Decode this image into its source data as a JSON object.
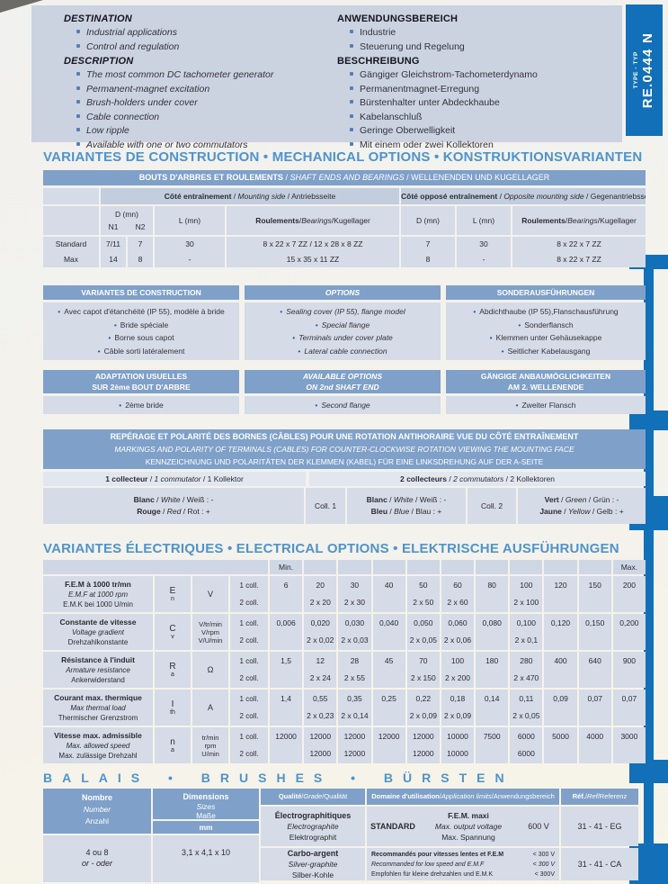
{
  "type_tab": {
    "label": "TYPE - TYP",
    "value": "RE.0444 N"
  },
  "intro": {
    "en": {
      "h1": "DESTINATION",
      "items1": [
        "Industrial applications",
        "Control and regulation"
      ],
      "h2": "DESCRIPTION",
      "items2": [
        "The most common DC tachometer generator",
        "Permanent-magnet excitation",
        "Brush-holders under cover",
        "Cable connection",
        "Low ripple",
        "Available with one or two commutators"
      ]
    },
    "de": {
      "h1": "ANWENDUNGSBEREICH",
      "items1": [
        "Industrie",
        "Steuerung und Regelung"
      ],
      "h2": "BESCHREIBUNG",
      "items2": [
        "Gängiger Gleichstrom-Tachometerdynamo",
        "Permanentmagnet-Erregung",
        "Bürstenhalter unter Abdeckhaube",
        "Kabelanschluß",
        "Geringe Oberwelligkeit",
        "Mit einem oder zwei Kollektoren"
      ]
    }
  },
  "headings": {
    "mechanical": "VARIANTES DE CONSTRUCTION • MECHANICAL OPTIONS • KONSTRUKTIONSVARIANTEN",
    "electrical": "VARIANTES ÉLECTRIQUES • ELECTRICAL OPTIONS • ELEKTRISCHE AUSFÜHRUNGEN",
    "brushes": "BALAIS • BRUSHES • BÜRSTEN"
  },
  "bearings": {
    "band": {
      "fr": "BOUTS D'ARBRES ET ROULEMENTS",
      "en": "SHAFT ENDS AND BEARINGS",
      "de": "WELLENENDEN UND KUGELLAGER"
    },
    "group1": {
      "fr": "Côté entraînement",
      "en": "Mounting side",
      "de": "Antriebsseite"
    },
    "group2": {
      "fr": "Côté opposé entraînement",
      "en": "Opposite mounting side",
      "de": "Gegenantriebsseite"
    },
    "col_d": "D (mn)",
    "col_l": "L (mn)",
    "col_brg": {
      "fr": "Roulements",
      "en": "Bearings",
      "de": "Kugellager"
    },
    "sub_n1": "N1",
    "sub_n2": "N2",
    "rows": [
      {
        "label": "Standard",
        "n1": "7/11",
        "n2": "7",
        "l": "30",
        "brg": "8 x 22 x 7 ZZ / 12 x 28 x 8 ZZ",
        "d2": "7",
        "l2": "30",
        "brg2": "8 x 22 x 7 ZZ"
      },
      {
        "label": "Max",
        "n1": "14",
        "n2": "8",
        "l": "-",
        "brg": "15 x 35 x 11 ZZ",
        "d2": "8",
        "l2": "-",
        "brg2": "8 x 22 x 7 ZZ"
      }
    ]
  },
  "options": {
    "columns": [
      {
        "title": "VARIANTES DE CONSTRUCTION",
        "items": [
          "Avec capot d'étanchéité (IP 55), modèle à bride",
          "Bride spéciale",
          "Borne sous capot",
          "Câble sorti latéralement"
        ]
      },
      {
        "title": "OPTIONS",
        "items": [
          "Sealing cover (IP 55), flange model",
          "Special flange",
          "Terminals under cover plate",
          "Lateral cable connection"
        ]
      },
      {
        "title": "SONDERAUSFÜHRUNGEN",
        "items": [
          "Abdichthaube (IP 55),Flanschausführung",
          "Sonderflansch",
          "Klemmen unter Gehäusekappe",
          "Seitlicher Kabelausgang"
        ]
      }
    ]
  },
  "adaptation": {
    "columns": [
      {
        "title1": "ADAPTATION USUELLES",
        "title2": "SUR 2ème BOUT D'ARBRE",
        "items": [
          "2ème bride"
        ]
      },
      {
        "title1": "AVAILABLE OPTIONS",
        "title2": "ON 2nd SHAFT END",
        "items": [
          "Second flange"
        ]
      },
      {
        "title1": "GÄNGIGE ANBAUMÖGLICHKEITEN",
        "title2": "AM 2. WELLENENDE",
        "items": [
          "Zweiter Flansch"
        ]
      }
    ]
  },
  "polarity": {
    "band_fr": "REPÉRAGE ET POLARITÉ DES BORNES (CÂBLES) POUR UNE ROTATION ANTIHORAIRE VUE DU CÔTÉ ENTRAÎNEMENT",
    "band_en": "MARKINGS AND POLARITY OF TERMINALS (CABLES) FOR COUNTER-CLOCKWISE ROTATION VIEWING THE MOUNTING FACE",
    "band_de": "KENNZEICHNUNG UND POLARITÄTEN DER KLEMMEN (KABEL) FÜR EINE LINKSDREHUNG AUF DER A-SEITE",
    "group1": {
      "fr": "1 collecteur",
      "en": "1 commutator",
      "de": "1 Kollektor"
    },
    "group2": {
      "fr": "2 collecteurs",
      "en": "2 commutators",
      "de": "2 Kollektoren"
    },
    "coll1_label": "Coll. 1",
    "coll2_label": "Coll. 2",
    "single": [
      {
        "fr": "Blanc",
        "en": "White",
        "de": "Weiß",
        "pol": "-"
      },
      {
        "fr": "Rouge",
        "en": "Red",
        "de": "Rot",
        "pol": "+"
      }
    ],
    "coll1": [
      {
        "fr": "Blanc",
        "en": "White",
        "de": "Weiß",
        "pol": "-"
      },
      {
        "fr": "Bleu",
        "en": "Blue",
        "de": "Blau",
        "pol": "+"
      }
    ],
    "coll2": [
      {
        "fr": "Vert",
        "en": "Green",
        "de": "Grün",
        "pol": "-"
      },
      {
        "fr": "Jaune",
        "en": "Yellow",
        "de": "Gelb",
        "pol": "+"
      }
    ]
  },
  "electrical": {
    "min_label": "Min.",
    "max_label": "Max.",
    "coll1_label": "1 coll.",
    "coll2_label": "2 coll.",
    "rows": [
      {
        "fr": "F.E.M à 1000 tr/mn",
        "en": "E.M.F at 1000 rpm",
        "de": "E.M.K bei 1000 U/min",
        "sym": "E",
        "sub": "n",
        "units": [
          "V"
        ],
        "coll1": [
          "6",
          "20",
          "30",
          "40",
          "50",
          "60",
          "80",
          "100",
          "120",
          "150",
          "200"
        ],
        "coll2": [
          "",
          "2 x 20",
          "2 x 30",
          "",
          "2 x 50",
          "2 x 60",
          "",
          "2 x 100",
          "",
          "",
          ""
        ]
      },
      {
        "fr": "Constante de vitesse",
        "en": "Voltage gradient",
        "de": "Drehzahlkonstante",
        "sym": "C",
        "sub": "v",
        "units": [
          "V/tr/min",
          "V/rpm",
          "V/U/min"
        ],
        "coll1": [
          "0,006",
          "0,020",
          "0,030",
          "0,040",
          "0,050",
          "0,060",
          "0,080",
          "0,100",
          "0,120",
          "0,150",
          "0,200"
        ],
        "coll2": [
          "",
          "2 x 0,02",
          "2 x 0,03",
          "",
          "2 x 0,05",
          "2 x 0,06",
          "",
          "2 x 0,1",
          "",
          "",
          ""
        ]
      },
      {
        "fr": "Résistance à l'induit",
        "en": "Armature resistance",
        "de": "Ankerwiderstand",
        "sym": "R",
        "sub": "a",
        "units": [
          "Ω"
        ],
        "coll1": [
          "1,5",
          "12",
          "28",
          "45",
          "70",
          "100",
          "180",
          "280",
          "400",
          "640",
          "900"
        ],
        "coll2": [
          "",
          "2 x 24",
          "2 x 55",
          "",
          "2 x 150",
          "2 x 200",
          "",
          "2 x 470",
          "",
          "",
          ""
        ]
      },
      {
        "fr": "Courant max. thermique",
        "en": "Max thermal load",
        "de": "Thermischer Grenzstrom",
        "sym": "I",
        "sub": "th",
        "units": [
          "A"
        ],
        "coll1": [
          "1,4",
          "0,55",
          "0,35",
          "0,25",
          "0,22",
          "0,18",
          "0,14",
          "0,11",
          "0,09",
          "0,07",
          "0,07"
        ],
        "coll2": [
          "",
          "2 x 0,23",
          "2 x 0,14",
          "",
          "2 x 0,09",
          "2 x 0,09",
          "",
          "2 x 0,05",
          "",
          "",
          ""
        ]
      },
      {
        "fr": "Vitesse max. admissible",
        "en": "Max. allowed speed",
        "de": "Max. zulässige Drehzahl",
        "sym": "n",
        "sub": "a",
        "units": [
          "tr/min",
          "rpm",
          "U/min"
        ],
        "coll1": [
          "12000",
          "12000",
          "12000",
          "12000",
          "12000",
          "10000",
          "7500",
          "6000",
          "5000",
          "4000",
          "3000"
        ],
        "coll2": [
          "",
          "12000",
          "12000",
          "",
          "12000",
          "10000",
          "",
          "6000",
          "",
          "",
          ""
        ]
      }
    ]
  },
  "brushes": {
    "col_number": {
      "fr": "Nombre",
      "en": "Number",
      "de": "Anzahl"
    },
    "col_dim": {
      "fr": "Dimensions",
      "en": "Sizes",
      "de": "Maße"
    },
    "dim_unit": "mm",
    "col_quality": {
      "fr": "Qualité",
      "en": "Grade",
      "de": "Qualität"
    },
    "col_domain": {
      "fr": "Domaine d'utilisation",
      "en": "Application limits",
      "de": "Anwendungsbereich"
    },
    "col_ref": {
      "fr": "Réf.",
      "en": "Ref",
      "de": "Referenz"
    },
    "number_l1": "4 ou 8",
    "number_l2": "or - oder",
    "dimensions": "3,1 x 4,1 x 10",
    "row1": {
      "quality": {
        "fr": "Électrographitiques",
        "en": "Electrographite",
        "de": "Elektrographit"
      },
      "domain_label": "STANDARD",
      "domain": {
        "fr": "F.E.M. maxi",
        "en": "Max. output voltage",
        "de": "Max. Spannung"
      },
      "domain_value": "600 V",
      "ref": "31 - 41 - EG"
    },
    "row2": {
      "quality": {
        "fr": "Carbo-argent",
        "en": "Silver-graphite",
        "de": "Silber-Kohle"
      },
      "lines": [
        {
          "text": "Recommandés pour vitesses lentes et F.E.M",
          "value": "< 300 V"
        },
        {
          "text": "Recommanded for low speed and E.M.F",
          "value": "< 300 V"
        },
        {
          "text": "Empfohlen für kleine drehzahlen und E.M.K",
          "value": "< 300V"
        }
      ],
      "ref": "31 - 41 - CA"
    }
  }
}
